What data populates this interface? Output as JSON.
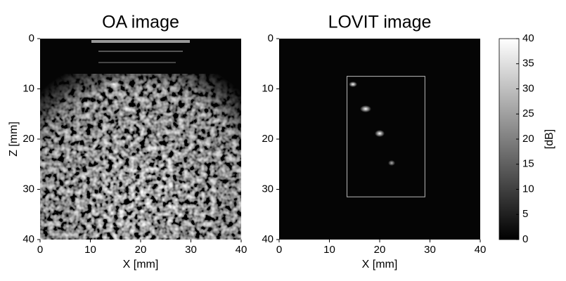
{
  "chart_data": [
    {
      "type": "image",
      "title": "OA image",
      "xlabel": "X [mm]",
      "ylabel": "Z [mm]",
      "xlim": [
        0,
        40
      ],
      "ylim": [
        0,
        40
      ],
      "y_inverted": true,
      "xticks": [
        0,
        10,
        20,
        30,
        40
      ],
      "yticks": [
        0,
        10,
        20,
        30,
        40
      ]
    },
    {
      "type": "image",
      "title": "LOVIT image",
      "xlabel": "X [mm]",
      "xlim": [
        0,
        40
      ],
      "ylim": [
        0,
        40
      ],
      "y_inverted": true,
      "xticks": [
        0,
        10,
        20,
        30,
        40
      ],
      "yticks": [
        0,
        10,
        20,
        30,
        40
      ],
      "roi": {
        "x": [
          13.5,
          29
        ],
        "z": [
          7.5,
          31.5
        ]
      }
    },
    {
      "type": "colorbar",
      "label": "[dB]",
      "clim": [
        0,
        40
      ],
      "ticks": [
        0,
        5,
        10,
        15,
        20,
        25,
        30,
        35,
        40
      ]
    }
  ]
}
